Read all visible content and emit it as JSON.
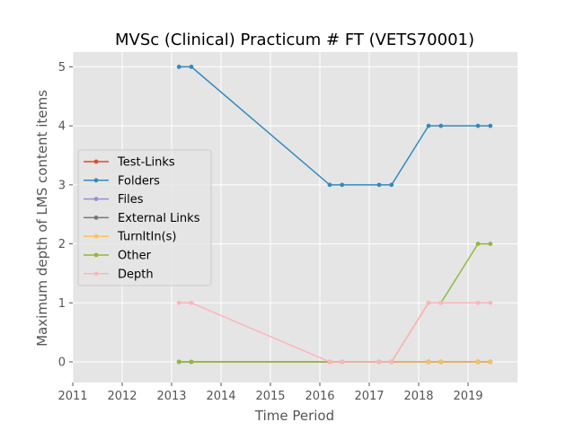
{
  "chart_data": {
    "type": "line",
    "title": "MVSc (Clinical) Practicum # FT (VETS70001)",
    "xlabel": "Time Period",
    "ylabel": "Maximum depth of LMS content items",
    "xlim": [
      2011,
      2020
    ],
    "ylim": [
      -0.35,
      5.25
    ],
    "x_ticks": [
      "2011",
      "2012",
      "2013",
      "2014",
      "2015",
      "2016",
      "2017",
      "2018",
      "2019"
    ],
    "y_ticks": [
      "0",
      "1",
      "2",
      "3",
      "4",
      "5"
    ],
    "grid": true,
    "legend_position": "center-left",
    "x": [
      2013.15,
      2013.4,
      2016.2,
      2016.45,
      2017.2,
      2017.45,
      2018.2,
      2018.45,
      2019.2,
      2019.45
    ],
    "series": [
      {
        "name": "Test-Links",
        "color": "#E24A33",
        "values": [
          0,
          0,
          0,
          0,
          0,
          0,
          0,
          0,
          0,
          0
        ]
      },
      {
        "name": "Folders",
        "color": "#348ABD",
        "values": [
          5,
          5,
          3,
          3,
          3,
          3,
          4,
          4,
          4,
          4
        ]
      },
      {
        "name": "Files",
        "color": "#988ED5",
        "values": [
          0,
          0,
          0,
          0,
          0,
          0,
          0,
          0,
          0,
          0
        ]
      },
      {
        "name": "External Links",
        "color": "#777777",
        "values": [
          0,
          0,
          0,
          0,
          0,
          0,
          0,
          0,
          0,
          0
        ]
      },
      {
        "name": "TurnItIn(s)",
        "color": "#FBC15E",
        "values": [
          0,
          0,
          0,
          0,
          0,
          0,
          0,
          0,
          0,
          0
        ]
      },
      {
        "name": "Other",
        "color": "#8EBA42",
        "values": [
          0,
          0,
          0,
          0,
          0,
          0,
          1,
          1,
          2,
          2
        ]
      },
      {
        "name": "Depth",
        "color": "#FFB5B8",
        "values": [
          1,
          1,
          0,
          0,
          0,
          0,
          1,
          1,
          1,
          1
        ]
      }
    ]
  }
}
